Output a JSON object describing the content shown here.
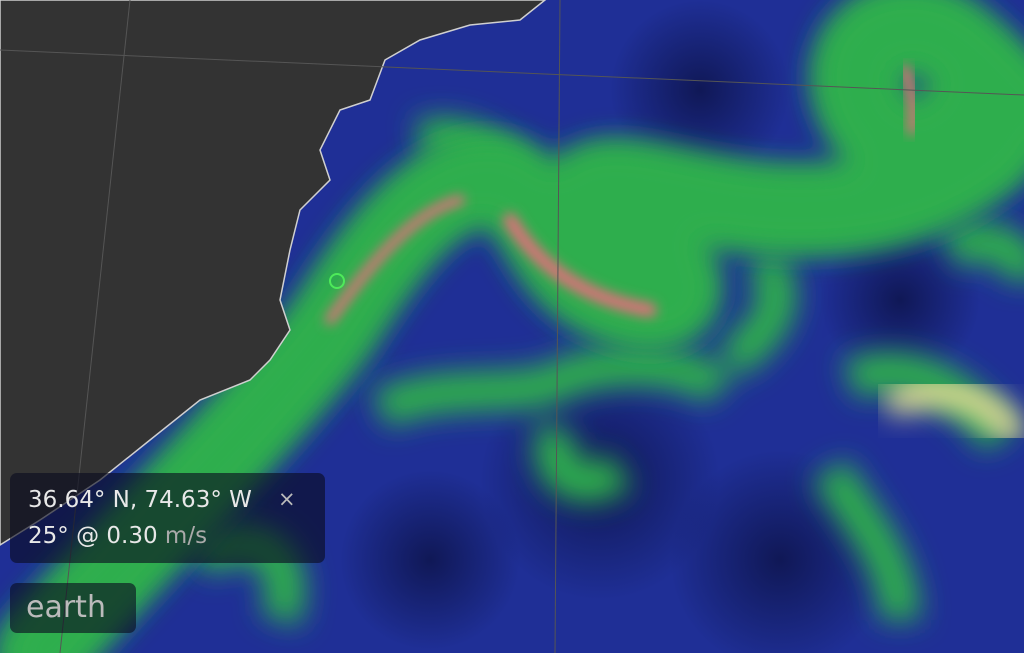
{
  "map": {
    "location_marker_icon": "circle-marker-icon",
    "colors": {
      "ocean_low": "#1b2a8c",
      "mid": "#2fae4e",
      "high": "#e6dc96",
      "peak": "#e0707a",
      "land": "#333333",
      "coast": "#d0d0d0"
    }
  },
  "info": {
    "coordinates": "36.64° N, 74.63° W",
    "close_label": "×",
    "velocity_value": "25° @ 0.30",
    "velocity_unit": "m/s"
  },
  "brand": {
    "label": "earth"
  }
}
